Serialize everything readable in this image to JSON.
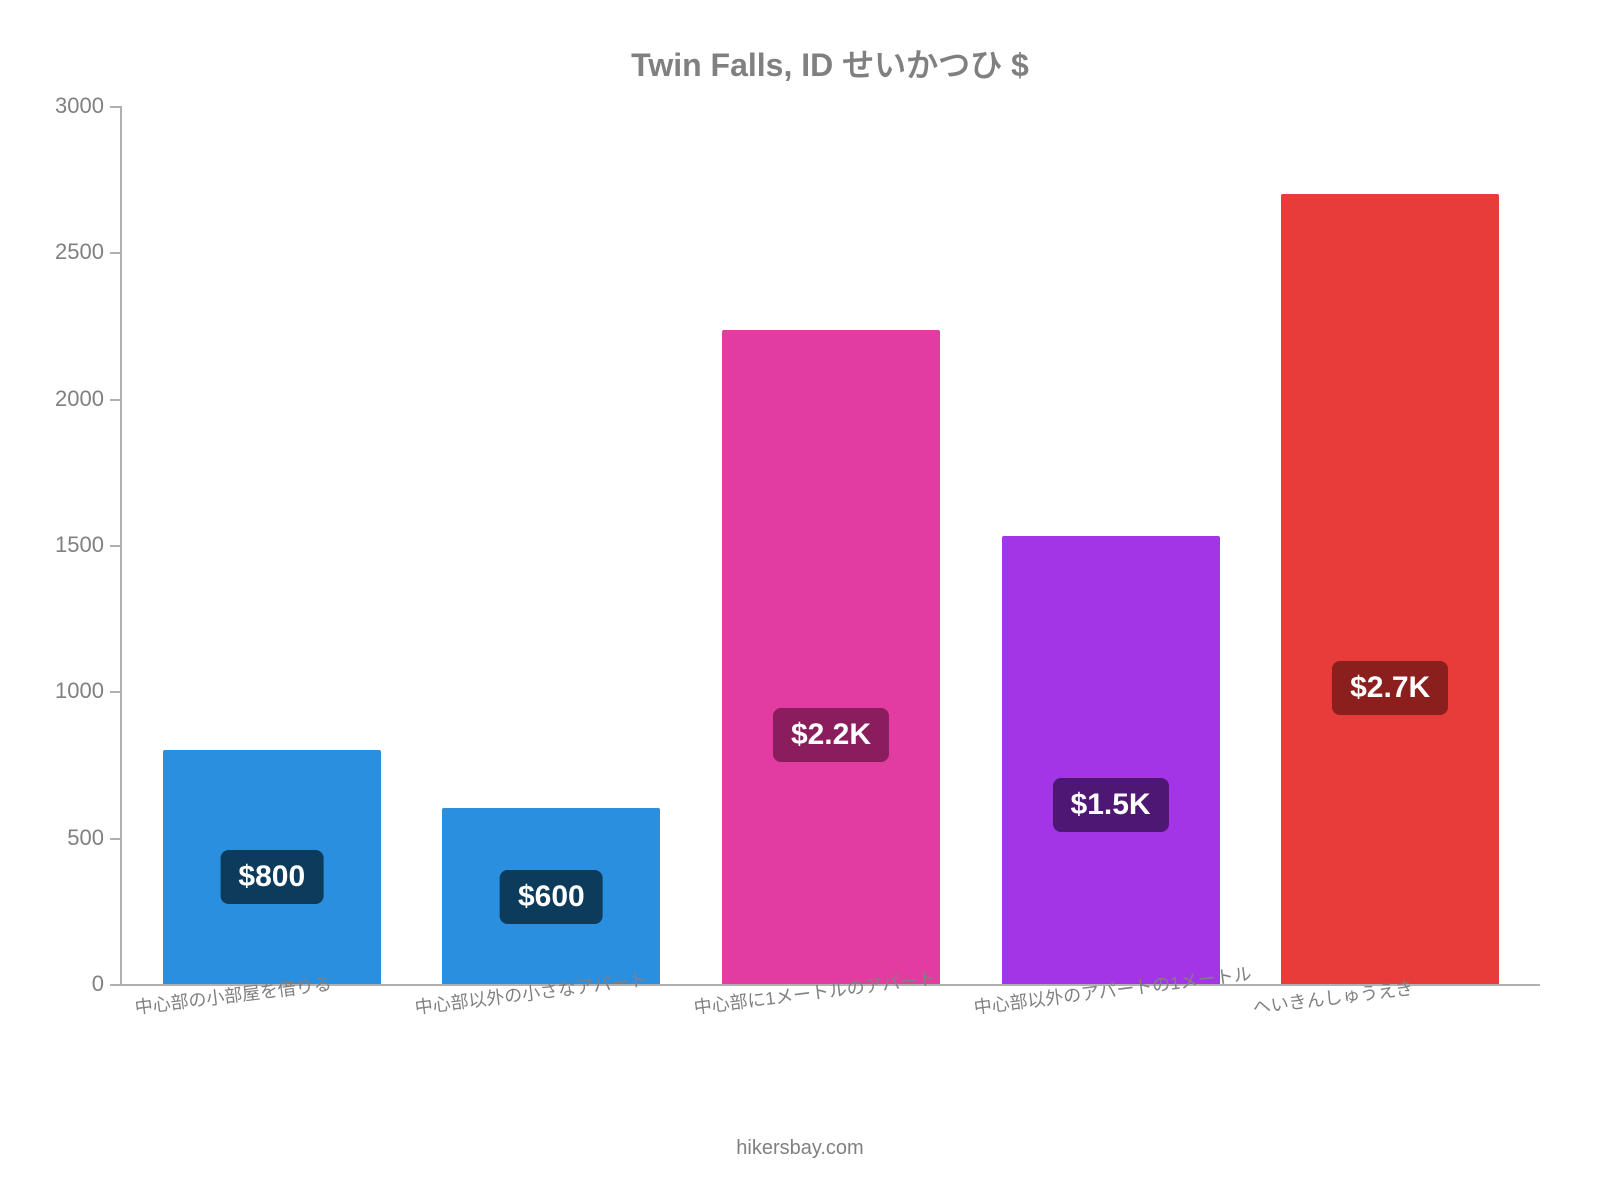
{
  "chart": {
    "type": "bar",
    "title": "Twin Falls, ID せいかつひ $",
    "title_color": "#808080",
    "title_fontsize": 32,
    "background_color": "#ffffff",
    "axis_color": "#b0b0b0",
    "label_color": "#808080",
    "label_fontsize": 22,
    "xlabel_fontsize": 18,
    "xlabel_rotation_deg": -7,
    "ylim": [
      0,
      3000
    ],
    "ytick_step": 500,
    "yticks": [
      0,
      500,
      1000,
      1500,
      2000,
      2500,
      3000
    ],
    "bar_width_ratio": 0.78,
    "categories": [
      "中心部の小部屋を借りる",
      "中心部以外の小さなアパート",
      "中心部に1メートルのアパート",
      "中心部以外のアパートの1メートル",
      "へいきんしゅうえき"
    ],
    "values": [
      800,
      600,
      2233,
      1530,
      2700
    ],
    "display_labels": [
      "$800",
      "$600",
      "$2.2K",
      "$1.5K",
      "$2.7K"
    ],
    "bar_colors": [
      "#2b8fe0",
      "#2b8fe0",
      "#e33ca0",
      "#a435e7",
      "#e73c39"
    ],
    "label_bg_colors": [
      "#0d3b5c",
      "#0d3b5c",
      "#8a1e5d",
      "#4e1773",
      "#8a1f1d"
    ],
    "value_label_fontsize": 30
  },
  "attribution": "hikersbay.com"
}
